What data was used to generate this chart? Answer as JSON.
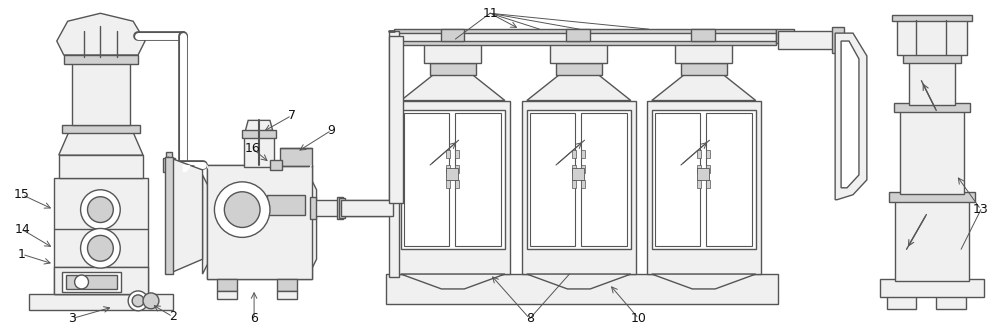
{
  "bg_color": "#ffffff",
  "lc": "#555555",
  "fc": "#f0f0f0",
  "dfc": "#d0d0d0",
  "figw": 10.0,
  "figh": 3.29,
  "dpi": 100
}
